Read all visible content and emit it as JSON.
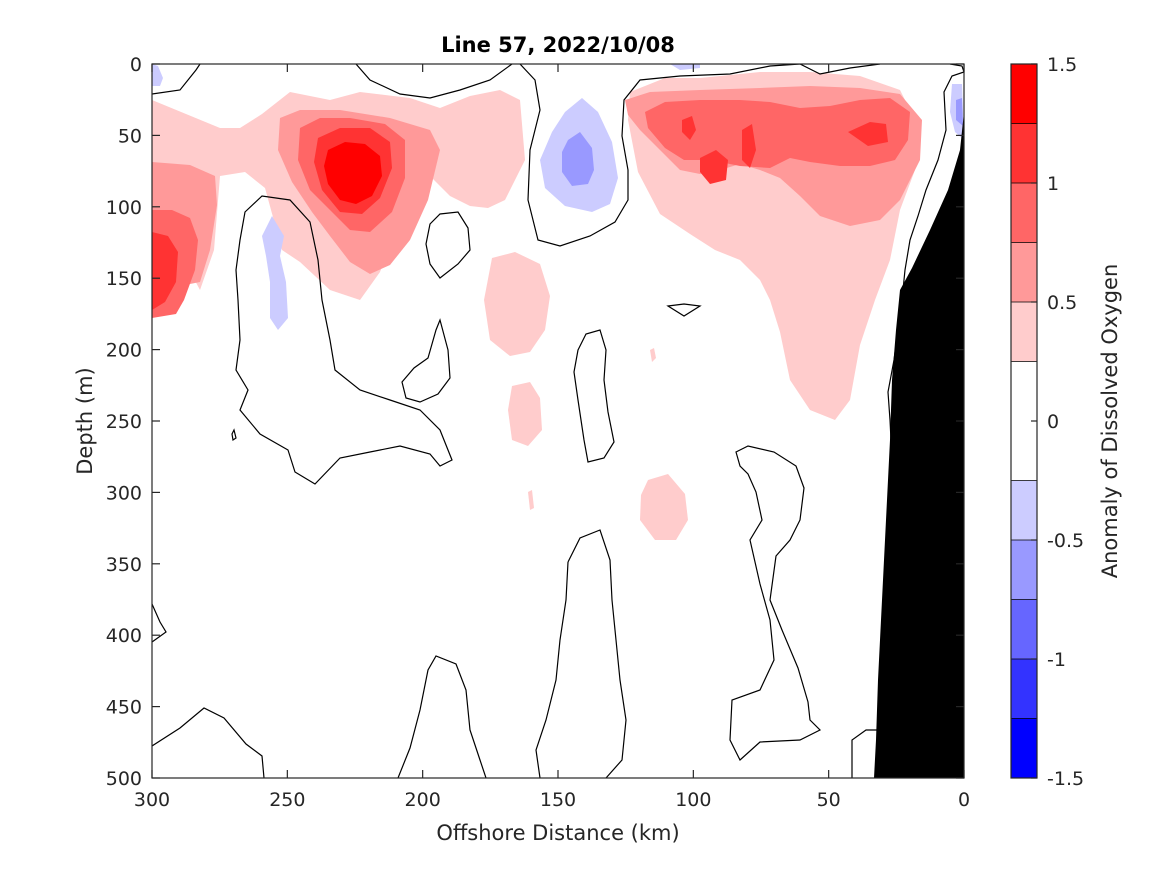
{
  "chart_data": {
    "type": "heatmap",
    "subtype": "filled-contour",
    "title": "Line 57, 2022/10/08",
    "xlabel": "Offshore Distance (km)",
    "ylabel": "Depth (m)",
    "colorbar_label": "Anomaly of Dissolved Oxygen",
    "xlim": [
      300,
      0
    ],
    "ylim": [
      500,
      0
    ],
    "x_reversed": true,
    "y_reversed": true,
    "x_ticks": [
      300,
      250,
      200,
      150,
      100,
      50,
      0
    ],
    "x_tick_labels": [
      "300",
      "250",
      "200",
      "150",
      "100",
      "50",
      "0"
    ],
    "y_ticks": [
      0,
      50,
      100,
      150,
      200,
      250,
      300,
      350,
      400,
      450,
      500
    ],
    "y_tick_labels": [
      "0",
      "50",
      "100",
      "150",
      "200",
      "250",
      "300",
      "350",
      "400",
      "450",
      "500"
    ],
    "colorbar": {
      "clim": [
        -1.5,
        1.5
      ],
      "levels": [
        -1.5,
        -1.25,
        -1.0,
        -0.75,
        -0.5,
        -0.25,
        0.25,
        0.5,
        0.75,
        1.0,
        1.25,
        1.5
      ],
      "ticks": [
        -1.5,
        -1,
        -0.5,
        0,
        0.5,
        1,
        1.5
      ],
      "tick_labels": [
        "-1.5",
        "-1",
        "-0.5",
        "0",
        "0.5",
        "1",
        "1.5"
      ],
      "bins_top_to_bottom": [
        {
          "range": [
            1.25,
            1.5
          ],
          "color": "#ff0000"
        },
        {
          "range": [
            1.0,
            1.25
          ],
          "color": "#ff3333"
        },
        {
          "range": [
            0.75,
            1.0
          ],
          "color": "#ff6666"
        },
        {
          "range": [
            0.5,
            0.75
          ],
          "color": "#ff9999"
        },
        {
          "range": [
            0.25,
            0.5
          ],
          "color": "#ffcccc"
        },
        {
          "range": [
            0.0,
            0.25
          ],
          "color": "#ffffff"
        },
        {
          "range": [
            -0.25,
            0.0
          ],
          "color": "#ffffff"
        },
        {
          "range": [
            -0.5,
            -0.25
          ],
          "color": "#ccccff"
        },
        {
          "range": [
            -0.75,
            -0.5
          ],
          "color": "#9999ff"
        },
        {
          "range": [
            -1.0,
            -0.75
          ],
          "color": "#6666ff"
        },
        {
          "range": [
            -1.25,
            -1.0
          ],
          "color": "#3333ff"
        },
        {
          "range": [
            -1.5,
            -1.25
          ],
          "color": "#0000ff"
        }
      ]
    },
    "features": [
      {
        "kind": "positive-anomaly",
        "center_km": 225,
        "center_depth_m": 75,
        "peak_value": 1.25
      },
      {
        "kind": "positive-anomaly",
        "center_km": 297,
        "center_depth_m": 135,
        "peak_value": 1.0
      },
      {
        "kind": "positive-anomaly",
        "center_km": 95,
        "center_depth_m": 75,
        "peak_value": 1.0
      },
      {
        "kind": "positive-anomaly",
        "center_km": 35,
        "center_depth_m": 50,
        "peak_value": 1.0
      },
      {
        "kind": "positive-anomaly",
        "center_km": 160,
        "center_depth_m": 190,
        "peak_value": 0.25
      },
      {
        "kind": "positive-anomaly",
        "center_km": 110,
        "center_depth_m": 310,
        "peak_value": 0.25
      },
      {
        "kind": "negative-anomaly",
        "center_km": 145,
        "center_depth_m": 70,
        "peak_value": -0.75
      },
      {
        "kind": "negative-anomaly",
        "center_km": 255,
        "center_depth_m": 140,
        "peak_value": -0.25
      }
    ],
    "bathymetry_mask": {
      "color": "#000000",
      "outline": [
        [
          0,
          35
        ],
        [
          5,
          60
        ],
        [
          8,
          80
        ],
        [
          14,
          105
        ],
        [
          20,
          130
        ],
        [
          22,
          145
        ],
        [
          25,
          150
        ],
        [
          28,
          175
        ],
        [
          30,
          200
        ],
        [
          31,
          250
        ],
        [
          32,
          300
        ],
        [
          34,
          350
        ],
        [
          35,
          400
        ],
        [
          36,
          450
        ],
        [
          36,
          500
        ],
        [
          0,
          500
        ]
      ]
    }
  }
}
